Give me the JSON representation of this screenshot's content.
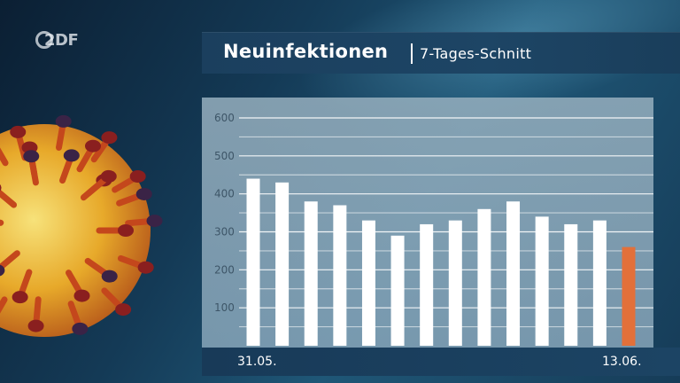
{
  "header": {
    "logo": "2DF",
    "title": "Neuinfektionen",
    "subtitle": "7-Tages-Schnitt"
  },
  "chart_data": {
    "type": "bar",
    "title": "Neuinfektionen",
    "subtitle": "7-Tages-Schnitt",
    "categories": [
      "31.05.",
      "",
      "",
      "",
      "",
      "",
      "",
      "",
      "",
      "",
      "",
      "",
      "",
      "13.06."
    ],
    "values": [
      440,
      430,
      380,
      370,
      330,
      290,
      320,
      330,
      360,
      380,
      340,
      320,
      330,
      260
    ],
    "highlight_index": 13,
    "ylim": [
      0,
      600
    ],
    "yticks": [
      100,
      200,
      300,
      400,
      500,
      600
    ],
    "grid": true,
    "colors": {
      "bar": "#ffffff",
      "highlight": "#e2703a",
      "grid": "#ffffff",
      "tick_label": "#3e5668"
    }
  },
  "x_axis": {
    "start_label": "31.05.",
    "end_label": "13.06."
  }
}
